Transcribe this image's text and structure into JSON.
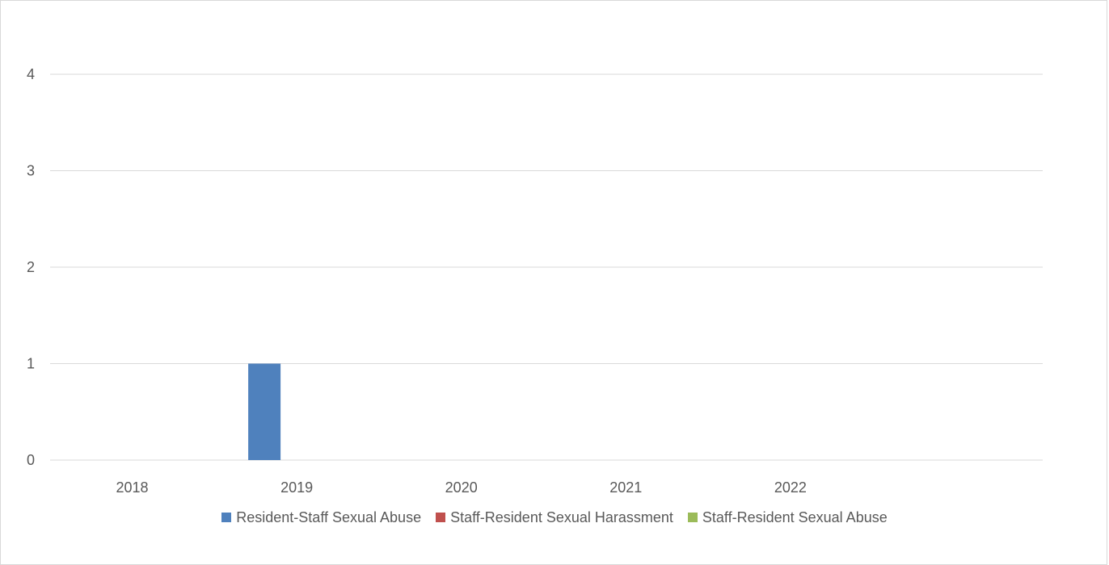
{
  "chart_data": {
    "type": "bar",
    "categories": [
      "2018",
      "2019",
      "2020",
      "2021",
      "2022"
    ],
    "series": [
      {
        "name": "Resident-Staff Sexual Abuse",
        "values": [
          0,
          1,
          0,
          0,
          0
        ],
        "color": "#4f81bd"
      },
      {
        "name": "Staff-Resident Sexual Harassment",
        "values": [
          0,
          0,
          0,
          0,
          0
        ],
        "color": "#c0504d"
      },
      {
        "name": "Staff-Resident Sexual Abuse",
        "values": [
          0,
          0,
          0,
          0,
          0
        ],
        "color": "#9bbb59"
      }
    ],
    "ylim": [
      0,
      4
    ],
    "yticks": [
      "0",
      "1",
      "2",
      "3",
      "4"
    ],
    "grid": true,
    "legend": "bottom",
    "gridline_color": "#d9d9d9",
    "tick_label_color": "#595959"
  }
}
